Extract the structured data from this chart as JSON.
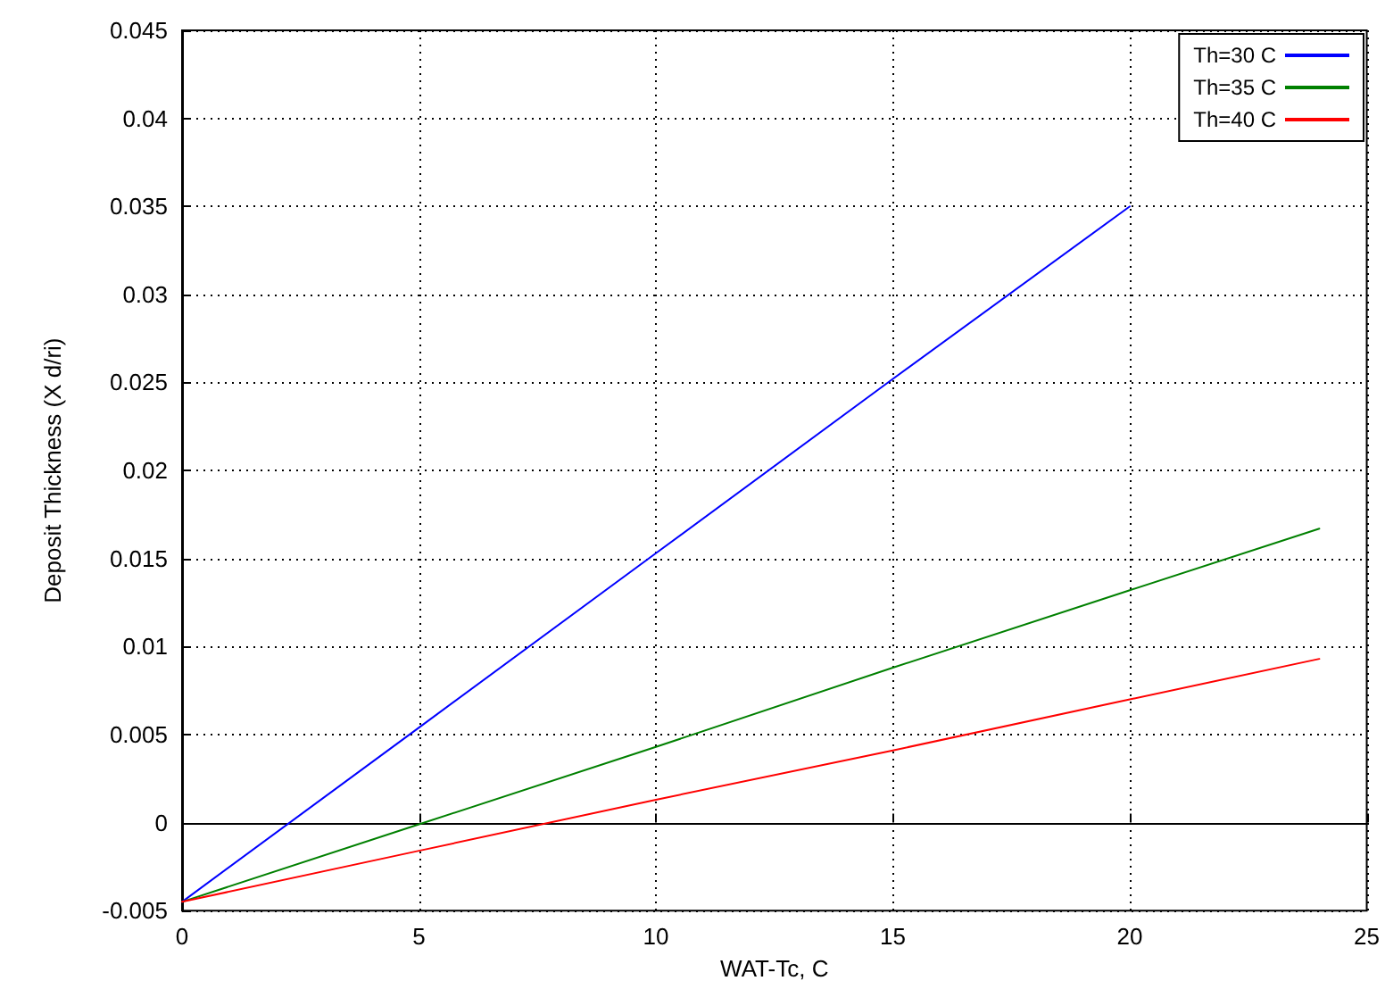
{
  "chart_data": {
    "type": "line",
    "xlabel": "WAT-Tc, C",
    "ylabel": "Deposit Thickness (X d/ri)",
    "xlim": [
      0,
      25
    ],
    "xticks": [
      0,
      5,
      10,
      15,
      20,
      25
    ],
    "ylim": [
      -0.005,
      0.045
    ],
    "yticks": [
      -0.005,
      0,
      0.005,
      0.01,
      0.015,
      0.02,
      0.025,
      0.03,
      0.035,
      0.04,
      0.045
    ],
    "grid": true,
    "legend": "top right",
    "marker": "none",
    "line_style": "solid",
    "series": [
      {
        "name": "Th=30 C",
        "color": "#0000ff",
        "x": [
          0,
          5,
          10,
          15,
          20
        ],
        "values": [
          -0.0045,
          0.0054,
          0.0153,
          0.0252,
          0.035
        ]
      },
      {
        "name": "Th=35 C",
        "color": "#008000",
        "x": [
          0,
          5,
          10,
          15,
          20,
          24
        ],
        "values": [
          -0.0045,
          -0.0001,
          0.0043,
          0.0088,
          0.0132,
          0.0167
        ]
      },
      {
        "name": "Th=40 C",
        "color": "#ff0000",
        "x": [
          0,
          5,
          10,
          15,
          20,
          24
        ],
        "values": [
          -0.0045,
          -0.0016,
          0.0013,
          0.0041,
          0.007,
          0.0093
        ]
      }
    ]
  }
}
